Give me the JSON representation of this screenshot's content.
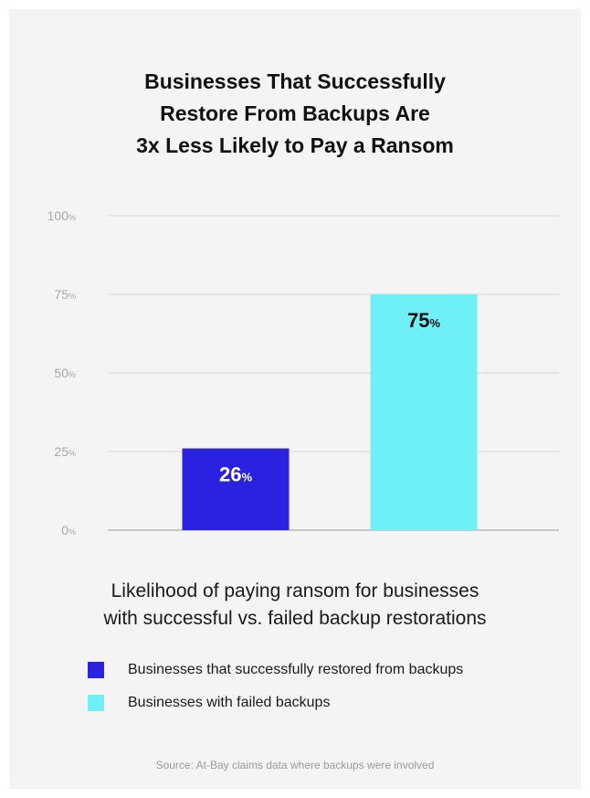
{
  "colors": {
    "series_success": "#2a22e0",
    "series_failed": "#6ff0f7",
    "grid": "#d9d9d9",
    "axis": "#9a9a9a",
    "tick_text": "#a8a8a8"
  },
  "chart_data": {
    "type": "bar",
    "title_lines": [
      "Businesses That Successfully",
      "Restore From Backups Are",
      "3x Less Likely to Pay a Ransom"
    ],
    "subtitle_lines": [
      "Likelihood of paying ransom for businesses",
      "with successful vs. failed backup restorations"
    ],
    "categories": [
      "Businesses that successfully restored from backups",
      "Businesses with failed backups"
    ],
    "values": [
      26,
      75
    ],
    "value_labels": [
      "26",
      "75"
    ],
    "unit": "%",
    "ylim": [
      0,
      100
    ],
    "yticks": [
      0,
      25,
      50,
      75,
      100
    ],
    "ytick_labels": [
      "0",
      "25",
      "50",
      "75",
      "100"
    ],
    "grid": true,
    "legend_position": "bottom-left",
    "source": "Source: At-Bay claims data where backups were involved"
  }
}
